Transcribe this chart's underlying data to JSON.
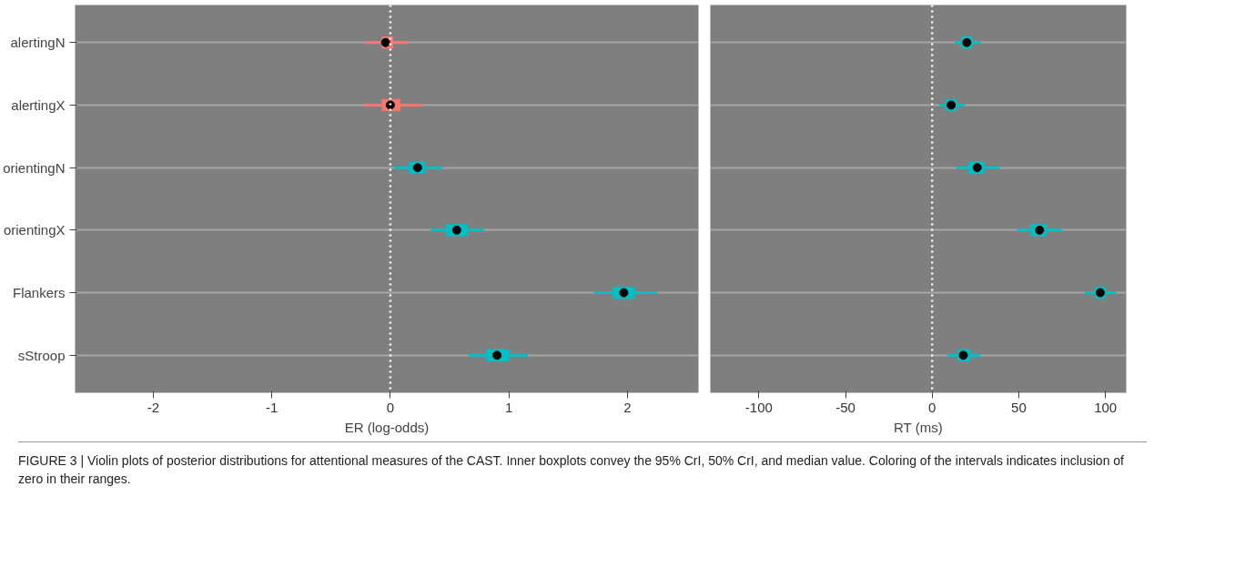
{
  "chart_data": [
    {
      "type": "box",
      "orientation": "horizontal",
      "categories": [
        "alertingN",
        "alertingX",
        "orientingN",
        "orientingX",
        "Flankers",
        "sStroop"
      ],
      "xlabel": "ER (log-odds)",
      "xlim": [
        -2.66,
        2.6
      ],
      "xticks": [
        -2,
        -1,
        0,
        1,
        2
      ],
      "grid": "y",
      "ref_lines": [
        {
          "axis": "x",
          "value": 0,
          "color": "#ffffff",
          "line_style": "dotted"
        }
      ],
      "colors": [
        "#f8766d",
        "#f8766d",
        "#00bfc4",
        "#00bfc4",
        "#00bfc4",
        "#00bfc4"
      ],
      "boxes": [
        {
          "low": -0.21,
          "q1": -0.07,
          "median": -0.04,
          "q3": 0.02,
          "high": 0.15
        },
        {
          "low": -0.22,
          "q1": -0.07,
          "median": 0.0,
          "q3": 0.08,
          "high": 0.27
        },
        {
          "low": 0.03,
          "q1": 0.16,
          "median": 0.23,
          "q3": 0.29,
          "high": 0.44
        },
        {
          "low": 0.34,
          "q1": 0.47,
          "median": 0.56,
          "q3": 0.65,
          "high": 0.79
        },
        {
          "low": 1.72,
          "q1": 1.88,
          "median": 1.97,
          "q3": 2.06,
          "high": 2.25
        },
        {
          "low": 0.66,
          "q1": 0.81,
          "median": 0.9,
          "q3": 1.0,
          "high": 1.16
        }
      ],
      "annotations": [
        "FIGURE 3 | Violin plots of posterior distributions for attentional measures of the CAST. Inner boxplots convey the 95% CrI, 50% CrI, and median value. Coloring of the intervals indicates inclusion of zero in their ranges."
      ]
    },
    {
      "type": "box",
      "orientation": "horizontal",
      "xlabel": "RT (ms)",
      "xlim": [
        -128,
        112
      ],
      "xticks": [
        -100,
        -50,
        0,
        50,
        100
      ],
      "grid": "y",
      "tick_labels": "x",
      "ref_lines": [
        {
          "axis": "x",
          "value": 0,
          "color": "#ffffff",
          "line_style": "dotted"
        }
      ],
      "colors": [
        "#00bfc4",
        "#00bfc4",
        "#00bfc4",
        "#00bfc4",
        "#00bfc4",
        "#00bfc4"
      ],
      "boxes": [
        {
          "low": 13,
          "q1": 17,
          "median": 20,
          "q3": 23,
          "high": 28
        },
        {
          "low": 4,
          "q1": 8,
          "median": 11,
          "q3": 14,
          "high": 19
        },
        {
          "low": 14,
          "q1": 21,
          "median": 26,
          "q3": 30,
          "high": 39
        },
        {
          "low": 49,
          "q1": 57,
          "median": 62,
          "q3": 66,
          "high": 75
        },
        {
          "low": 88,
          "q1": 94,
          "median": 97,
          "q3": 100,
          "high": 106
        },
        {
          "low": 9,
          "q1": 15,
          "median": 18,
          "q3": 22,
          "high": 28
        }
      ]
    }
  ]
}
